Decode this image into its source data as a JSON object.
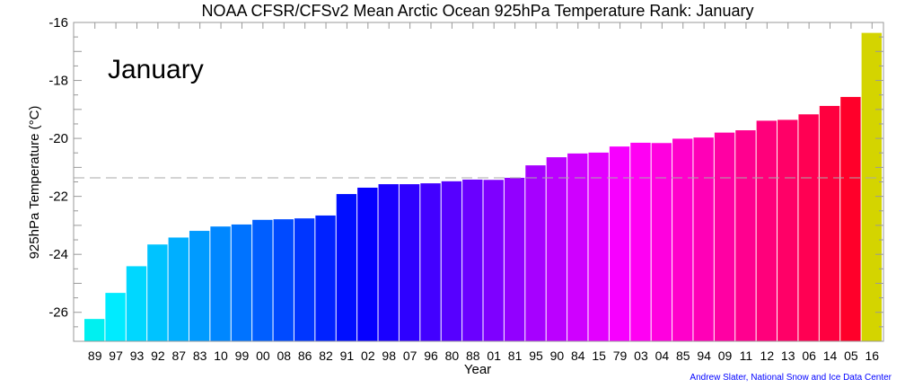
{
  "chart_data": {
    "type": "bar",
    "title": "NOAA CFSR/CFSv2 Mean Arctic Ocean 925hPa Temperature Rank: January",
    "annotation": "January",
    "xlabel": "Year",
    "ylabel": "925hPa Temperature (°C)",
    "ylim": [
      -27,
      -16
    ],
    "yticks": [
      -26,
      -24,
      -22,
      -20,
      -18,
      -16
    ],
    "grid": false,
    "categories": [
      "89",
      "97",
      "93",
      "92",
      "87",
      "83",
      "10",
      "99",
      "00",
      "08",
      "86",
      "82",
      "91",
      "02",
      "98",
      "07",
      "96",
      "80",
      "88",
      "01",
      "81",
      "95",
      "90",
      "84",
      "15",
      "79",
      "03",
      "04",
      "85",
      "94",
      "09",
      "11",
      "12",
      "13",
      "06",
      "14",
      "05",
      "16"
    ],
    "values": [
      -26.23,
      -25.33,
      -24.41,
      -23.66,
      -23.42,
      -23.19,
      -23.04,
      -22.97,
      -22.81,
      -22.79,
      -22.76,
      -22.66,
      -21.92,
      -21.7,
      -21.58,
      -21.58,
      -21.55,
      -21.48,
      -21.42,
      -21.43,
      -21.36,
      -20.93,
      -20.65,
      -20.52,
      -20.49,
      -20.28,
      -20.15,
      -20.16,
      -20.01,
      -19.97,
      -19.8,
      -19.72,
      -19.39,
      -19.36,
      -19.17,
      -18.88,
      -18.57,
      -16.36
    ],
    "mean_line": -21.36,
    "colors": {
      "start": "#00eeee",
      "middle": "#0000ff",
      "end": "#ff0033",
      "highlight": "#d4d400",
      "mean_line": "#aaaaaa",
      "credit": "#0000ff"
    }
  },
  "credit": "Andrew Slater, National Snow and Ice Data Center"
}
